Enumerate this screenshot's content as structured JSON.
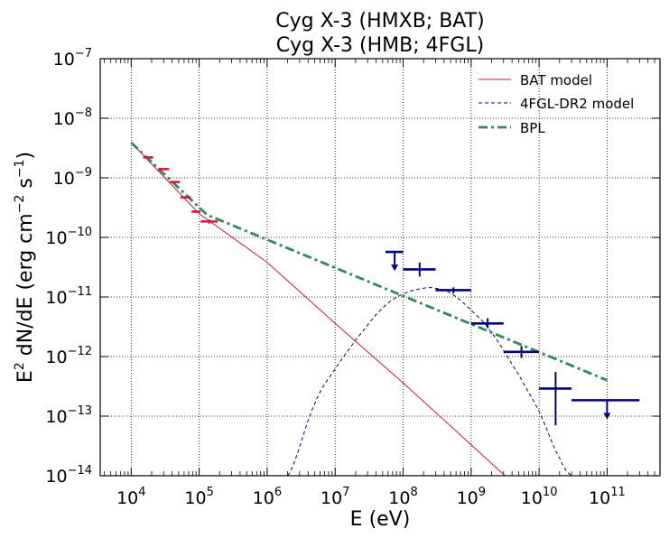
{
  "chart_data": {
    "type": "line",
    "title_lines": [
      "Cyg X-3 (HMXB; BAT)",
      "Cyg X-3 (HMB; 4FGL)"
    ],
    "xlabel": "E (eV)",
    "ylabel_main": "E",
    "ylabel_rest": " dN/dE (erg cm",
    "ylabel_rest2": " s",
    "ylabel_end": ")",
    "ylabel_sup1": "2",
    "ylabel_sup2": "−2",
    "ylabel_sup3": "−1",
    "x_scale": "log",
    "y_scale": "log",
    "xlim": [
      3500.0,
      600000000000.0
    ],
    "ylim": [
      1e-14,
      1e-07
    ],
    "x_ticks": [
      {
        "base": "10",
        "exp": "4",
        "v": 10000.0
      },
      {
        "base": "10",
        "exp": "5",
        "v": 100000.0
      },
      {
        "base": "10",
        "exp": "6",
        "v": 1000000.0
      },
      {
        "base": "10",
        "exp": "7",
        "v": 10000000.0
      },
      {
        "base": "10",
        "exp": "8",
        "v": 100000000.0
      },
      {
        "base": "10",
        "exp": "9",
        "v": 1000000000.0
      },
      {
        "base": "10",
        "exp": "10",
        "v": 10000000000.0
      },
      {
        "base": "10",
        "exp": "11",
        "v": 100000000000.0
      }
    ],
    "y_ticks": [
      {
        "base": "10",
        "exp": "−14",
        "v": 1e-14
      },
      {
        "base": "10",
        "exp": "−13",
        "v": 1e-13
      },
      {
        "base": "10",
        "exp": "−12",
        "v": 1e-12
      },
      {
        "base": "10",
        "exp": "−11",
        "v": 1e-11
      },
      {
        "base": "10",
        "exp": "−10",
        "v": 1e-10
      },
      {
        "base": "10",
        "exp": "−9",
        "v": 1e-09
      },
      {
        "base": "10",
        "exp": "−8",
        "v": 1e-08
      },
      {
        "base": "10",
        "exp": "−7",
        "v": 1e-07
      }
    ],
    "grid": true,
    "legend_position": "top-right",
    "series": [
      {
        "name": "BAT model",
        "kind": "line",
        "color": "#dc143c",
        "style": "solid",
        "x": [
          10000.0,
          100000.0,
          1000000.0,
          10000000.0,
          100000000.0,
          1000000000.0,
          10000000000.0
        ],
        "y": [
          3.9e-09,
          2.5e-10,
          3.8e-11,
          3.6e-12,
          3.6e-13,
          3.3e-14,
          3e-15
        ]
      },
      {
        "name": "4FGL-DR2 model",
        "kind": "curve",
        "color": "#00008b",
        "style": "dashed",
        "x": [
          2000000.0,
          5000000.0,
          10000000.0,
          20000000.0,
          50000000.0,
          100000000.0,
          200000000.0,
          300000000.0,
          500000000.0,
          1000000000.0,
          2000000000.0,
          5000000000.0,
          10000000000.0,
          20000000000.0,
          30000000000.0
        ],
        "y": [
          1e-14,
          1.6e-13,
          6.2e-13,
          1.9e-12,
          6.5e-12,
          1.12e-11,
          1.4e-11,
          1.4e-11,
          1.15e-11,
          6e-12,
          2.5e-12,
          5e-13,
          1.2e-13,
          2e-14,
          1e-14
        ]
      },
      {
        "name": "BPL",
        "kind": "line",
        "color": "#2e8b57",
        "style": "dashdot",
        "x": [
          10000.0,
          130000.0,
          100000000000.0
        ],
        "y": [
          3.9e-09,
          2.4e-10,
          4e-13
        ]
      }
    ],
    "bat_points": {
      "color": "#dc143c",
      "points": [
        {
          "x": 18000.0,
          "x_lo": 15000.0,
          "x_hi": 21000.0,
          "y": 2.2e-09
        },
        {
          "x": 30000.0,
          "x_lo": 25000.0,
          "x_hi": 36000.0,
          "y": 1.4e-09
        },
        {
          "x": 45000.0,
          "x_lo": 37000.0,
          "x_hi": 52000.0,
          "y": 8.5e-10
        },
        {
          "x": 65000.0,
          "x_lo": 53000.0,
          "x_hi": 75000.0,
          "y": 4.7e-10
        },
        {
          "x": 90000.0,
          "x_lo": 77000.0,
          "x_hi": 105000.0,
          "y": 2.7e-10
        },
        {
          "x": 140000.0,
          "x_lo": 105000.0,
          "x_hi": 185000.0,
          "y": 1.85e-10,
          "y_lo": 1.7e-10,
          "y_hi": 2e-10
        }
      ]
    },
    "fermi_points": {
      "color": "#000080",
      "points": [
        {
          "x": 75000000.0,
          "x_lo": 55000000.0,
          "x_hi": 100000000.0,
          "y": 5.7e-11,
          "upper_limit": true
        },
        {
          "x": 175000000.0,
          "x_lo": 100000000.0,
          "x_hi": 300000000.0,
          "y": 2.9e-11,
          "y_lo": 2.2e-11,
          "y_hi": 3.8e-11
        },
        {
          "x": 550000000.0,
          "x_lo": 300000000.0,
          "x_hi": 1000000000.0,
          "y": 1.3e-11,
          "y_lo": 1.15e-11,
          "y_hi": 1.45e-11
        },
        {
          "x": 1750000000.0,
          "x_lo": 1000000000.0,
          "x_hi": 3000000000.0,
          "y": 3.6e-12,
          "y_lo": 3e-12,
          "y_hi": 4.4e-12
        },
        {
          "x": 5500000000.0,
          "x_lo": 3000000000.0,
          "x_hi": 10000000000.0,
          "y": 1.2e-12,
          "y_lo": 9.5e-13,
          "y_hi": 1.5e-12
        },
        {
          "x": 17500000000.0,
          "x_lo": 10000000000.0,
          "x_hi": 30000000000.0,
          "y": 2.9e-13,
          "y_lo": 7e-14,
          "y_hi": 5.5e-13
        },
        {
          "x": 100000000000.0,
          "x_lo": 30000000000.0,
          "x_hi": 300000000000.0,
          "y": 1.85e-13,
          "upper_limit": true
        }
      ]
    }
  }
}
